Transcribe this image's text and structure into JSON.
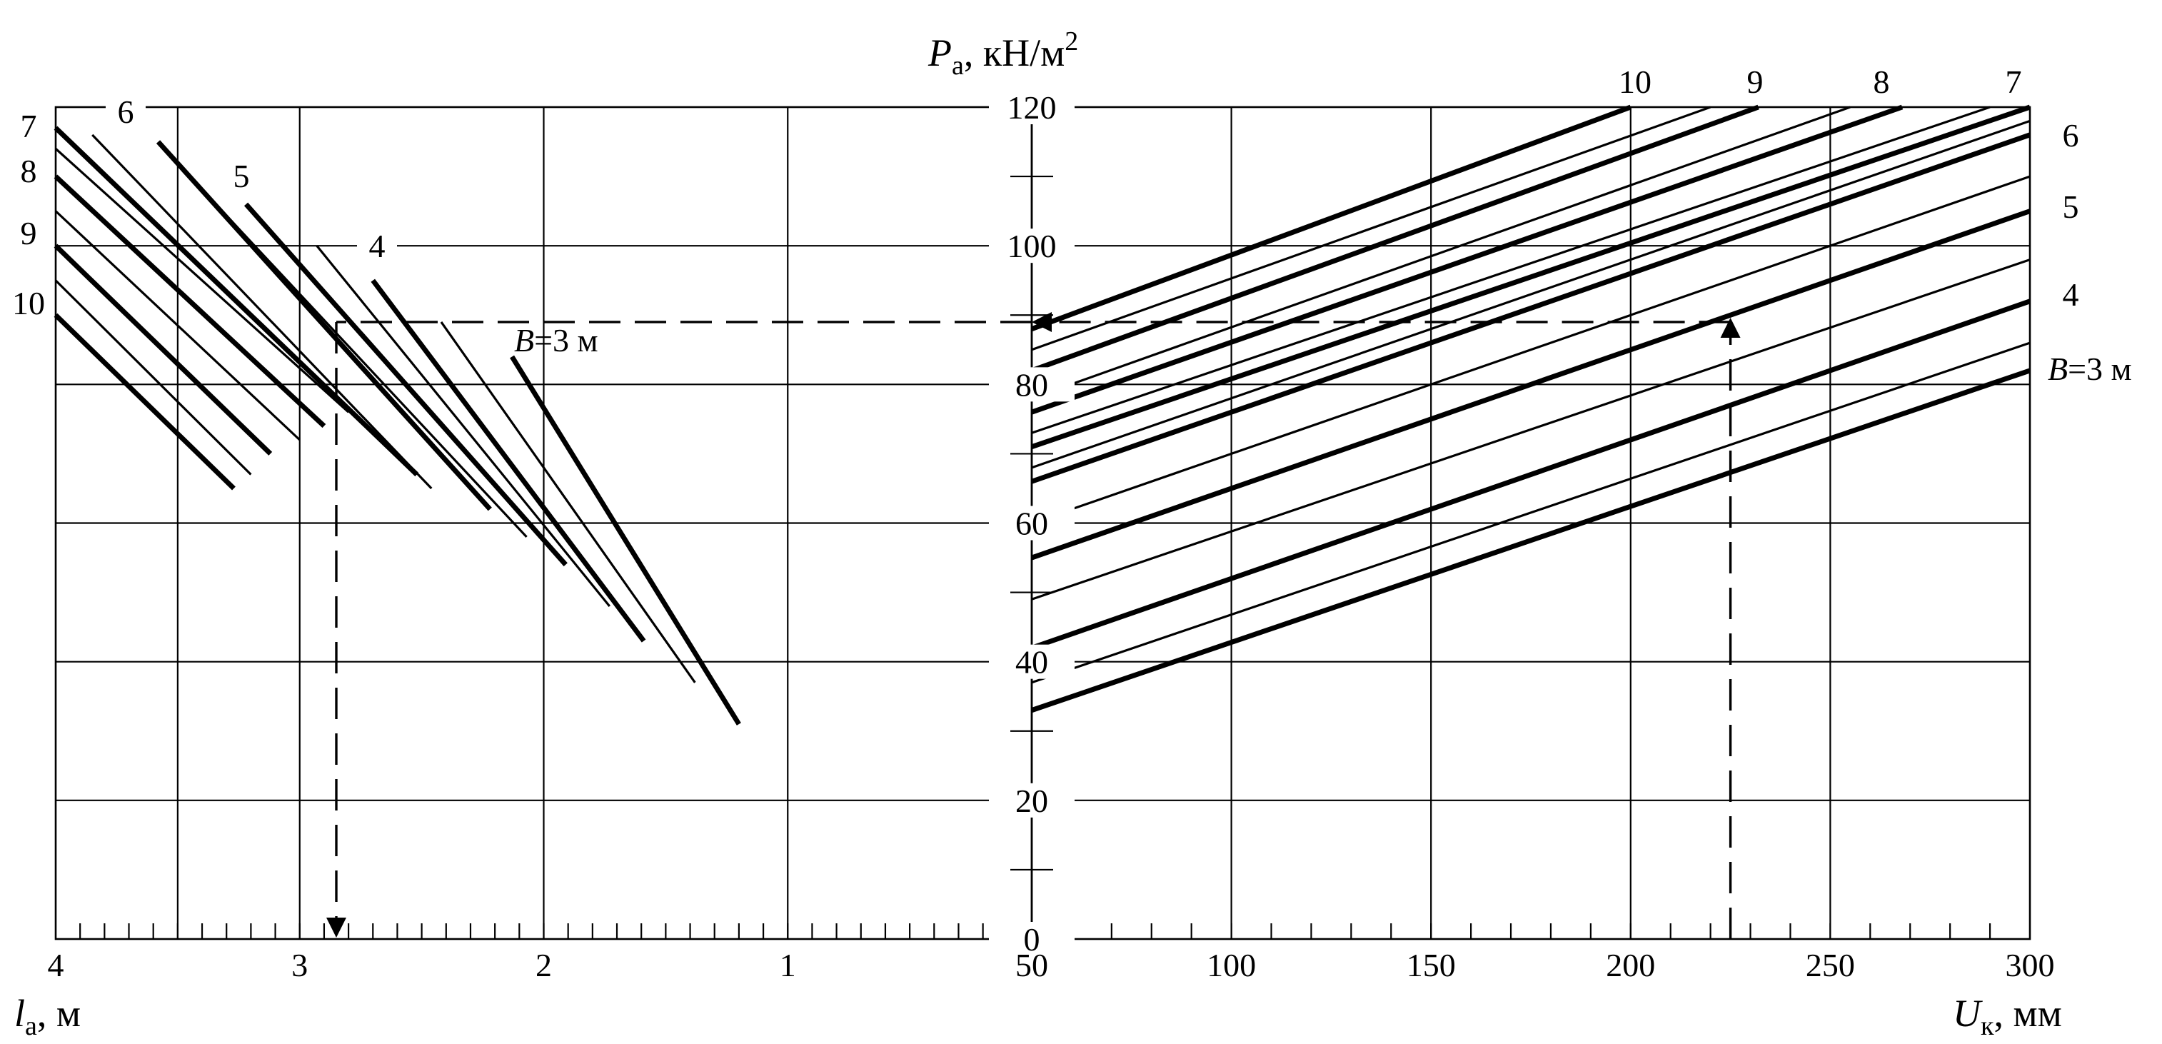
{
  "chart_data": [
    {
      "type": "line",
      "panel": "left",
      "xlabel": "l",
      "xlabel_sub": "a",
      "xlabel_unit": ", м",
      "xlim": [
        4,
        0
      ],
      "ylim": [
        0,
        120
      ],
      "x_ticks": [
        "4",
        "3",
        "2",
        "1"
      ],
      "grid": true,
      "series": [
        {
          "name": "10",
          "bold": true,
          "x": [
            4.0,
            3.27
          ],
          "y": [
            90,
            65
          ]
        },
        {
          "name": "",
          "bold": false,
          "x": [
            4.0,
            3.2
          ],
          "y": [
            95,
            67
          ]
        },
        {
          "name": "9",
          "bold": true,
          "x": [
            4.0,
            3.12
          ],
          "y": [
            100,
            70
          ]
        },
        {
          "name": "",
          "bold": false,
          "x": [
            4.0,
            3.0
          ],
          "y": [
            105,
            72
          ]
        },
        {
          "name": "8",
          "bold": true,
          "x": [
            4.0,
            2.9
          ],
          "y": [
            110,
            74
          ]
        },
        {
          "name": "",
          "bold": false,
          "x": [
            4.0,
            2.8
          ],
          "y": [
            114,
            76
          ]
        },
        {
          "name": "7",
          "bold": true,
          "x": [
            4.0,
            2.52
          ],
          "y": [
            117,
            67
          ]
        },
        {
          "name": "",
          "bold": false,
          "x": [
            3.85,
            2.46
          ],
          "y": [
            116,
            65
          ]
        },
        {
          "name": "6",
          "bold": true,
          "x": [
            3.58,
            2.22
          ],
          "y": [
            115,
            62
          ]
        },
        {
          "name": "",
          "bold": false,
          "x": [
            3.45,
            2.07
          ],
          "y": [
            110,
            58
          ]
        },
        {
          "name": "5",
          "bold": true,
          "x": [
            3.22,
            1.91
          ],
          "y": [
            106,
            54
          ]
        },
        {
          "name": "",
          "bold": false,
          "x": [
            2.93,
            1.73
          ],
          "y": [
            100,
            48
          ]
        },
        {
          "name": "4",
          "bold": true,
          "x": [
            2.7,
            1.59
          ],
          "y": [
            95,
            43
          ]
        },
        {
          "name": "",
          "bold": false,
          "x": [
            2.42,
            1.38
          ],
          "y": [
            89,
            37
          ]
        },
        {
          "name": "B=3 м",
          "bold": true,
          "x": [
            2.13,
            1.2
          ],
          "y": [
            84,
            31
          ]
        }
      ],
      "curve_labels": [
        "7",
        "6",
        "8",
        "5",
        "9",
        "4",
        "10",
        "B=3 м"
      ],
      "reading": {
        "x": 2.85,
        "y": 89
      }
    },
    {
      "type": "line",
      "panel": "right",
      "title": "P",
      "title_sub": "а",
      "title_unit": ", кН/м",
      "title_sup": "2",
      "xlabel": "U",
      "xlabel_sub": "к",
      "xlabel_unit": ", мм",
      "xlim": [
        50,
        300
      ],
      "ylim": [
        0,
        120
      ],
      "x_ticks": [
        "50",
        "100",
        "150",
        "200",
        "250",
        "300"
      ],
      "y_ticks": [
        "0",
        "20",
        "40",
        "60",
        "80",
        "100",
        "120"
      ],
      "grid": true,
      "series": [
        {
          "name": "B=3 м",
          "bold": true,
          "x": [
            50,
            300
          ],
          "y": [
            33,
            82
          ]
        },
        {
          "name": "",
          "bold": false,
          "x": [
            50,
            300
          ],
          "y": [
            37,
            86
          ]
        },
        {
          "name": "4",
          "bold": true,
          "x": [
            50,
            300
          ],
          "y": [
            42,
            92
          ]
        },
        {
          "name": "",
          "bold": false,
          "x": [
            50,
            300
          ],
          "y": [
            49,
            98
          ]
        },
        {
          "name": "5",
          "bold": true,
          "x": [
            50,
            300
          ],
          "y": [
            55,
            105
          ]
        },
        {
          "name": "",
          "bold": false,
          "x": [
            50,
            300
          ],
          "y": [
            60,
            110
          ]
        },
        {
          "name": "6",
          "bold": true,
          "x": [
            50,
            300
          ],
          "y": [
            66,
            116
          ]
        },
        {
          "name": "",
          "bold": false,
          "x": [
            50,
            300
          ],
          "y": [
            68,
            118
          ]
        },
        {
          "name": "7",
          "bold": true,
          "x": [
            50,
            300
          ],
          "y": [
            71,
            120
          ]
        },
        {
          "name": "",
          "bold": false,
          "x": [
            50,
            290
          ],
          "y": [
            73,
            120
          ]
        },
        {
          "name": "8",
          "bold": true,
          "x": [
            50,
            268
          ],
          "y": [
            76,
            120
          ]
        },
        {
          "name": "",
          "bold": false,
          "x": [
            50,
            255
          ],
          "y": [
            78,
            120
          ]
        },
        {
          "name": "9",
          "bold": true,
          "x": [
            50,
            232
          ],
          "y": [
            82,
            120
          ]
        },
        {
          "name": "",
          "bold": false,
          "x": [
            50,
            220
          ],
          "y": [
            85,
            120
          ]
        },
        {
          "name": "10",
          "bold": true,
          "x": [
            50,
            200
          ],
          "y": [
            88,
            120
          ]
        }
      ],
      "curve_labels": [
        "10",
        "9",
        "8",
        "7",
        "6",
        "5",
        "4",
        "B=3 м"
      ],
      "reading": {
        "x": 225,
        "y": 89
      }
    }
  ]
}
